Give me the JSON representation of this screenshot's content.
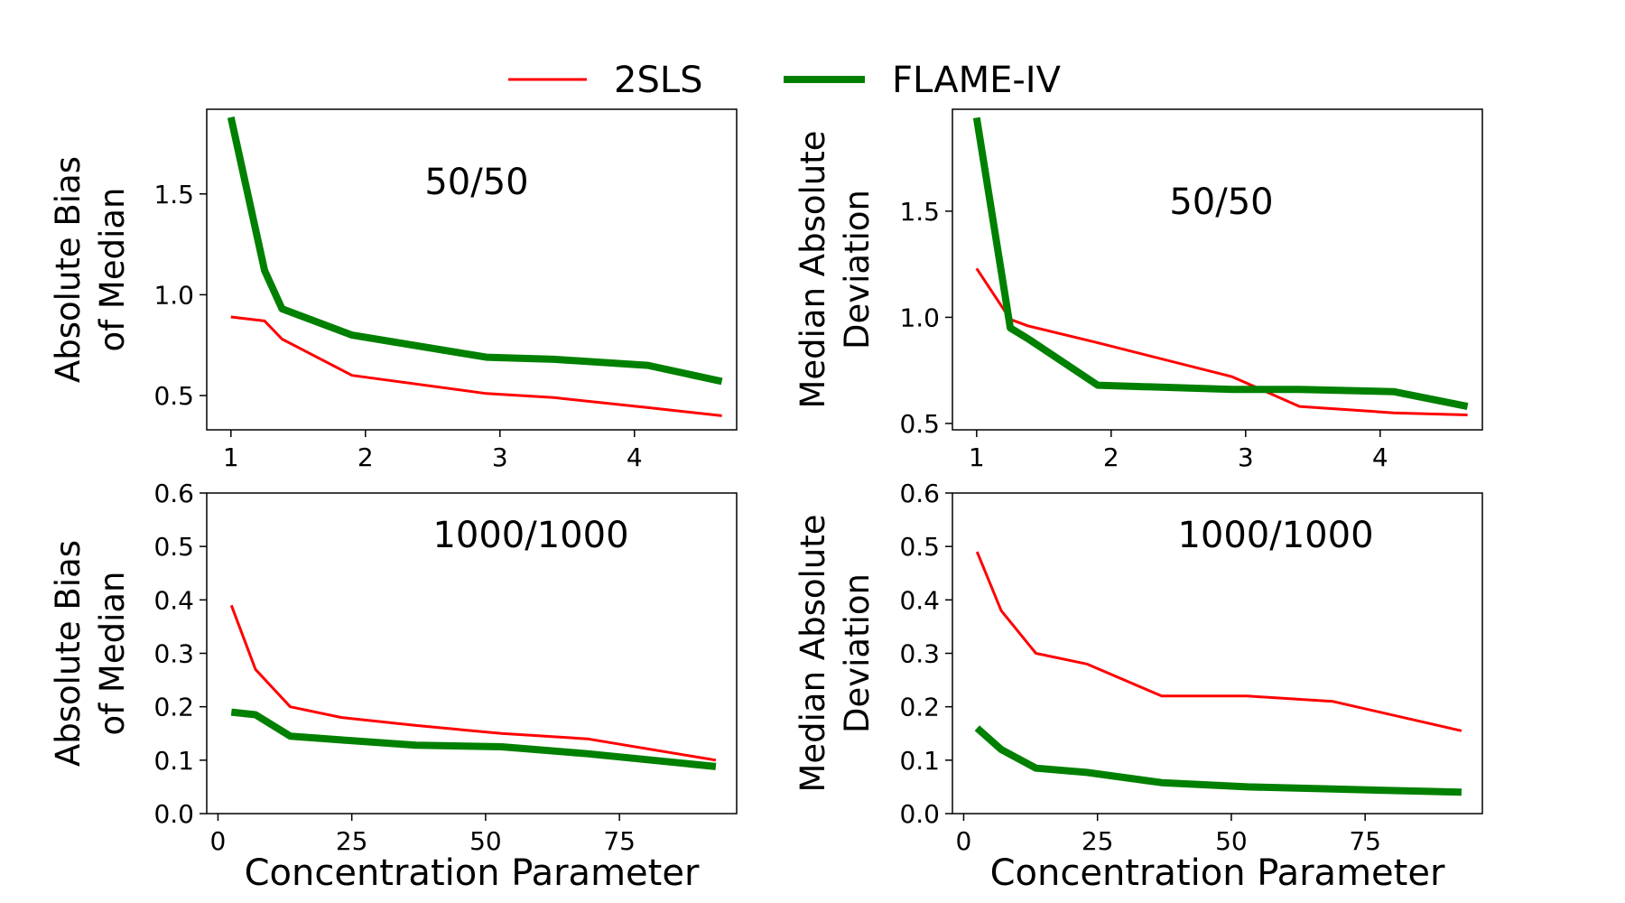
{
  "legend": {
    "placement": "top-center",
    "entries": [
      {
        "label": "2SLS",
        "color": "#ff0000",
        "line": "thin"
      },
      {
        "label": "FLAME-IV",
        "color": "#008000",
        "line": "thick"
      }
    ]
  },
  "chart_data": [
    {
      "type": "line",
      "annotation": "50/50",
      "xlabel": "",
      "ylabel": [
        "Absolute Bias",
        "of Median"
      ],
      "xlim": [
        0.82,
        4.76
      ],
      "ylim": [
        0.33,
        1.92
      ],
      "xticks": [
        1,
        2,
        3,
        4
      ],
      "yticks": [
        0.5,
        1.0,
        1.5
      ],
      "ytick_labels": [
        "0.5",
        "1.0",
        "1.5"
      ],
      "series": [
        {
          "name": "2SLS",
          "x": [
            1.0,
            1.25,
            1.38,
            1.9,
            2.9,
            3.4,
            4.1,
            4.65
          ],
          "y": [
            0.89,
            0.87,
            0.78,
            0.6,
            0.51,
            0.49,
            0.44,
            0.4
          ]
        },
        {
          "name": "FLAME-IV",
          "x": [
            1.0,
            1.25,
            1.38,
            1.9,
            2.9,
            3.4,
            4.1,
            4.65
          ],
          "y": [
            1.88,
            1.12,
            0.93,
            0.8,
            0.69,
            0.68,
            0.65,
            0.57
          ]
        }
      ]
    },
    {
      "type": "line",
      "annotation": "50/50",
      "xlabel": "",
      "ylabel": [
        "Median Absolute",
        "Deviation"
      ],
      "xlim": [
        0.82,
        4.76
      ],
      "ylim": [
        0.47,
        1.98
      ],
      "xticks": [
        1,
        2,
        3,
        4
      ],
      "yticks": [
        0.5,
        1.0,
        1.5
      ],
      "ytick_labels": [
        "0.5",
        "1.0",
        "1.5"
      ],
      "series": [
        {
          "name": "2SLS",
          "x": [
            1.0,
            1.25,
            1.38,
            1.9,
            2.9,
            3.4,
            4.1,
            4.65
          ],
          "y": [
            1.23,
            0.99,
            0.96,
            0.88,
            0.72,
            0.58,
            0.55,
            0.54
          ]
        },
        {
          "name": "FLAME-IV",
          "x": [
            1.0,
            1.25,
            1.38,
            1.9,
            2.9,
            3.4,
            4.1,
            4.65
          ],
          "y": [
            1.94,
            0.95,
            0.9,
            0.68,
            0.66,
            0.66,
            0.65,
            0.58
          ]
        }
      ]
    },
    {
      "type": "line",
      "annotation": "1000/1000",
      "xlabel": "Concentration Parameter",
      "ylabel": [
        "Absolute Bias",
        "of Median"
      ],
      "xlim": [
        -2.1,
        96.9
      ],
      "ylim": [
        0.0,
        0.6
      ],
      "xticks": [
        0,
        25,
        50,
        75
      ],
      "yticks": [
        0.0,
        0.1,
        0.2,
        0.3,
        0.4,
        0.5,
        0.6
      ],
      "ytick_labels": [
        "0.0",
        "0.1",
        "0.2",
        "0.3",
        "0.4",
        "0.5",
        "0.6"
      ],
      "series": [
        {
          "name": "2SLS",
          "x": [
            2.5,
            7,
            13.5,
            23,
            37,
            53,
            69,
            93
          ],
          "y": [
            0.39,
            0.27,
            0.2,
            0.18,
            0.165,
            0.15,
            0.14,
            0.1
          ]
        },
        {
          "name": "FLAME-IV",
          "x": [
            2.5,
            7,
            13.5,
            23,
            37,
            53,
            69,
            93
          ],
          "y": [
            0.19,
            0.185,
            0.145,
            0.138,
            0.128,
            0.125,
            0.112,
            0.088
          ]
        }
      ]
    },
    {
      "type": "line",
      "annotation": "1000/1000",
      "xlabel": "Concentration Parameter",
      "ylabel": [
        "Median Absolute",
        "Deviation"
      ],
      "xlim": [
        -2.1,
        96.9
      ],
      "ylim": [
        0.0,
        0.6
      ],
      "xticks": [
        0,
        25,
        50,
        75
      ],
      "yticks": [
        0.0,
        0.1,
        0.2,
        0.3,
        0.4,
        0.5,
        0.6
      ],
      "ytick_labels": [
        "0.0",
        "0.1",
        "0.2",
        "0.3",
        "0.4",
        "0.5",
        "0.6"
      ],
      "series": [
        {
          "name": "2SLS",
          "x": [
            2.5,
            7,
            13.5,
            23,
            37,
            53,
            69,
            93
          ],
          "y": [
            0.49,
            0.38,
            0.3,
            0.28,
            0.22,
            0.22,
            0.21,
            0.155
          ]
        },
        {
          "name": "FLAME-IV",
          "x": [
            2.5,
            7,
            13.5,
            23,
            37,
            53,
            69,
            93
          ],
          "y": [
            0.16,
            0.12,
            0.085,
            0.077,
            0.058,
            0.05,
            0.046,
            0.04
          ]
        }
      ]
    }
  ]
}
